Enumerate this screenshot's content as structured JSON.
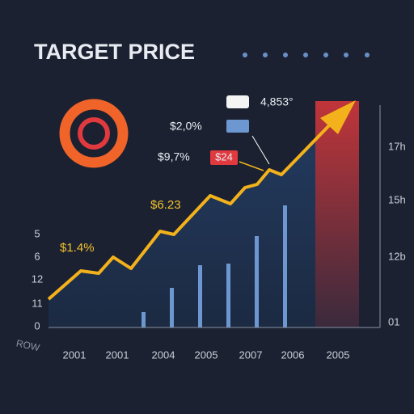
{
  "header": {
    "title": "TARGET PRICE"
  },
  "callouts": {
    "top": "4,853°",
    "upper": "$2,0%",
    "middle": "$9,7%",
    "tag": "$24",
    "mid_line": "$6.23",
    "low_line": "$1.4%"
  },
  "left_axis": [
    "5",
    "6",
    "12",
    "11",
    "0"
  ],
  "right_axis": [
    "17h",
    "15h",
    "12b",
    "01"
  ],
  "x_axis": {
    "title": "ROW",
    "labels": [
      "2001",
      "2001",
      "2004",
      "2005",
      "2007",
      "2006",
      "2005"
    ]
  }
}
